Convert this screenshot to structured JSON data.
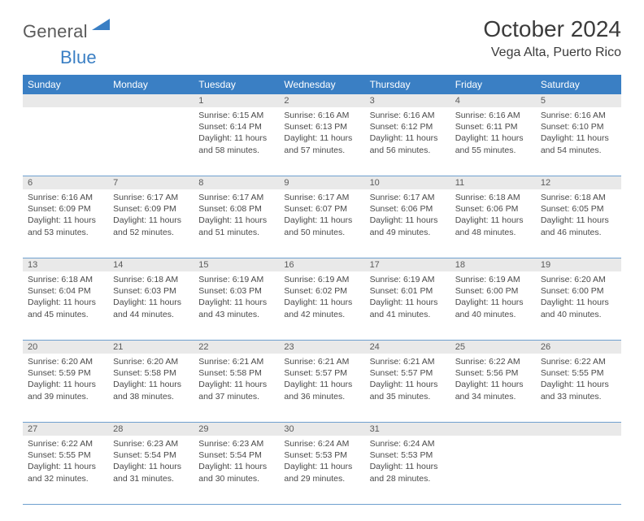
{
  "brand": {
    "part1": "General",
    "part2": "Blue"
  },
  "title": "October 2024",
  "location": "Vega Alta, Puerto Rico",
  "colors": {
    "header_bg": "#3a7fc4",
    "header_fg": "#ffffff",
    "daynum_bg": "#e9e9e9",
    "daynum_fg": "#5a5a5a",
    "grid_border": "#6fa0cf",
    "text": "#4a4a4a",
    "title_color": "#3b3b3b",
    "logo_gray": "#5b5b5b",
    "logo_blue": "#3a7fc4"
  },
  "typography": {
    "title_fontsize": 28,
    "location_fontsize": 16,
    "weekday_fontsize": 12,
    "daynum_fontsize": 11,
    "body_fontsize": 10.5,
    "font_family": "Arial"
  },
  "weekdays": [
    "Sunday",
    "Monday",
    "Tuesday",
    "Wednesday",
    "Thursday",
    "Friday",
    "Saturday"
  ],
  "weeks": [
    [
      null,
      null,
      {
        "n": "1",
        "sr": "6:15 AM",
        "ss": "6:14 PM",
        "dl": "11 hours and 58 minutes."
      },
      {
        "n": "2",
        "sr": "6:16 AM",
        "ss": "6:13 PM",
        "dl": "11 hours and 57 minutes."
      },
      {
        "n": "3",
        "sr": "6:16 AM",
        "ss": "6:12 PM",
        "dl": "11 hours and 56 minutes."
      },
      {
        "n": "4",
        "sr": "6:16 AM",
        "ss": "6:11 PM",
        "dl": "11 hours and 55 minutes."
      },
      {
        "n": "5",
        "sr": "6:16 AM",
        "ss": "6:10 PM",
        "dl": "11 hours and 54 minutes."
      }
    ],
    [
      {
        "n": "6",
        "sr": "6:16 AM",
        "ss": "6:09 PM",
        "dl": "11 hours and 53 minutes."
      },
      {
        "n": "7",
        "sr": "6:17 AM",
        "ss": "6:09 PM",
        "dl": "11 hours and 52 minutes."
      },
      {
        "n": "8",
        "sr": "6:17 AM",
        "ss": "6:08 PM",
        "dl": "11 hours and 51 minutes."
      },
      {
        "n": "9",
        "sr": "6:17 AM",
        "ss": "6:07 PM",
        "dl": "11 hours and 50 minutes."
      },
      {
        "n": "10",
        "sr": "6:17 AM",
        "ss": "6:06 PM",
        "dl": "11 hours and 49 minutes."
      },
      {
        "n": "11",
        "sr": "6:18 AM",
        "ss": "6:06 PM",
        "dl": "11 hours and 48 minutes."
      },
      {
        "n": "12",
        "sr": "6:18 AM",
        "ss": "6:05 PM",
        "dl": "11 hours and 46 minutes."
      }
    ],
    [
      {
        "n": "13",
        "sr": "6:18 AM",
        "ss": "6:04 PM",
        "dl": "11 hours and 45 minutes."
      },
      {
        "n": "14",
        "sr": "6:18 AM",
        "ss": "6:03 PM",
        "dl": "11 hours and 44 minutes."
      },
      {
        "n": "15",
        "sr": "6:19 AM",
        "ss": "6:03 PM",
        "dl": "11 hours and 43 minutes."
      },
      {
        "n": "16",
        "sr": "6:19 AM",
        "ss": "6:02 PM",
        "dl": "11 hours and 42 minutes."
      },
      {
        "n": "17",
        "sr": "6:19 AM",
        "ss": "6:01 PM",
        "dl": "11 hours and 41 minutes."
      },
      {
        "n": "18",
        "sr": "6:19 AM",
        "ss": "6:00 PM",
        "dl": "11 hours and 40 minutes."
      },
      {
        "n": "19",
        "sr": "6:20 AM",
        "ss": "6:00 PM",
        "dl": "11 hours and 40 minutes."
      }
    ],
    [
      {
        "n": "20",
        "sr": "6:20 AM",
        "ss": "5:59 PM",
        "dl": "11 hours and 39 minutes."
      },
      {
        "n": "21",
        "sr": "6:20 AM",
        "ss": "5:58 PM",
        "dl": "11 hours and 38 minutes."
      },
      {
        "n": "22",
        "sr": "6:21 AM",
        "ss": "5:58 PM",
        "dl": "11 hours and 37 minutes."
      },
      {
        "n": "23",
        "sr": "6:21 AM",
        "ss": "5:57 PM",
        "dl": "11 hours and 36 minutes."
      },
      {
        "n": "24",
        "sr": "6:21 AM",
        "ss": "5:57 PM",
        "dl": "11 hours and 35 minutes."
      },
      {
        "n": "25",
        "sr": "6:22 AM",
        "ss": "5:56 PM",
        "dl": "11 hours and 34 minutes."
      },
      {
        "n": "26",
        "sr": "6:22 AM",
        "ss": "5:55 PM",
        "dl": "11 hours and 33 minutes."
      }
    ],
    [
      {
        "n": "27",
        "sr": "6:22 AM",
        "ss": "5:55 PM",
        "dl": "11 hours and 32 minutes."
      },
      {
        "n": "28",
        "sr": "6:23 AM",
        "ss": "5:54 PM",
        "dl": "11 hours and 31 minutes."
      },
      {
        "n": "29",
        "sr": "6:23 AM",
        "ss": "5:54 PM",
        "dl": "11 hours and 30 minutes."
      },
      {
        "n": "30",
        "sr": "6:24 AM",
        "ss": "5:53 PM",
        "dl": "11 hours and 29 minutes."
      },
      {
        "n": "31",
        "sr": "6:24 AM",
        "ss": "5:53 PM",
        "dl": "11 hours and 28 minutes."
      },
      null,
      null
    ]
  ],
  "labels": {
    "sunrise": "Sunrise:",
    "sunset": "Sunset:",
    "daylight": "Daylight:"
  }
}
